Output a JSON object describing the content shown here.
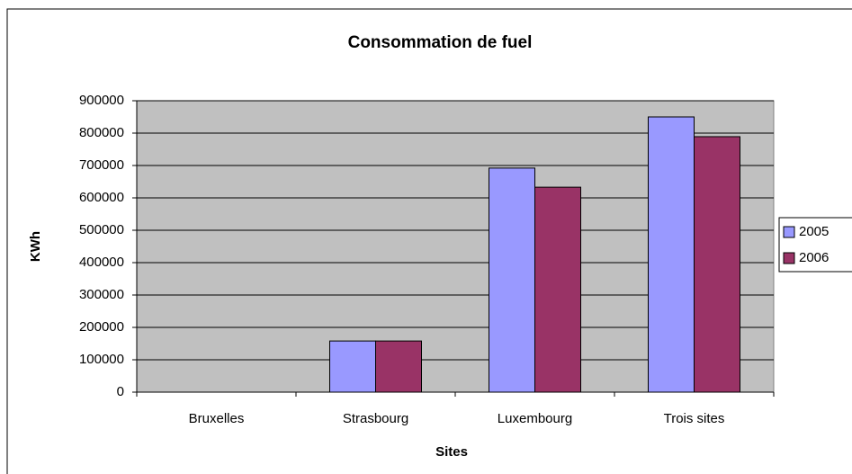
{
  "chart_data": {
    "type": "bar",
    "title": "Consommation de fuel",
    "x_label": "Sites",
    "y_label": "KWh",
    "categories": [
      "Bruxelles",
      "Strasbourg",
      "Luxembourg",
      "Trois sites"
    ],
    "series": [
      {
        "name": "2005",
        "color": "#9999ff",
        "values": [
          0,
          158000,
          692000,
          850000
        ]
      },
      {
        "name": "2006",
        "color": "#993366",
        "values": [
          0,
          158000,
          633000,
          789000
        ]
      }
    ],
    "ylim": [
      0,
      900000
    ],
    "yticks": [
      0,
      100000,
      200000,
      300000,
      400000,
      500000,
      600000,
      700000,
      800000,
      900000
    ],
    "grid": true,
    "legend": "right"
  }
}
